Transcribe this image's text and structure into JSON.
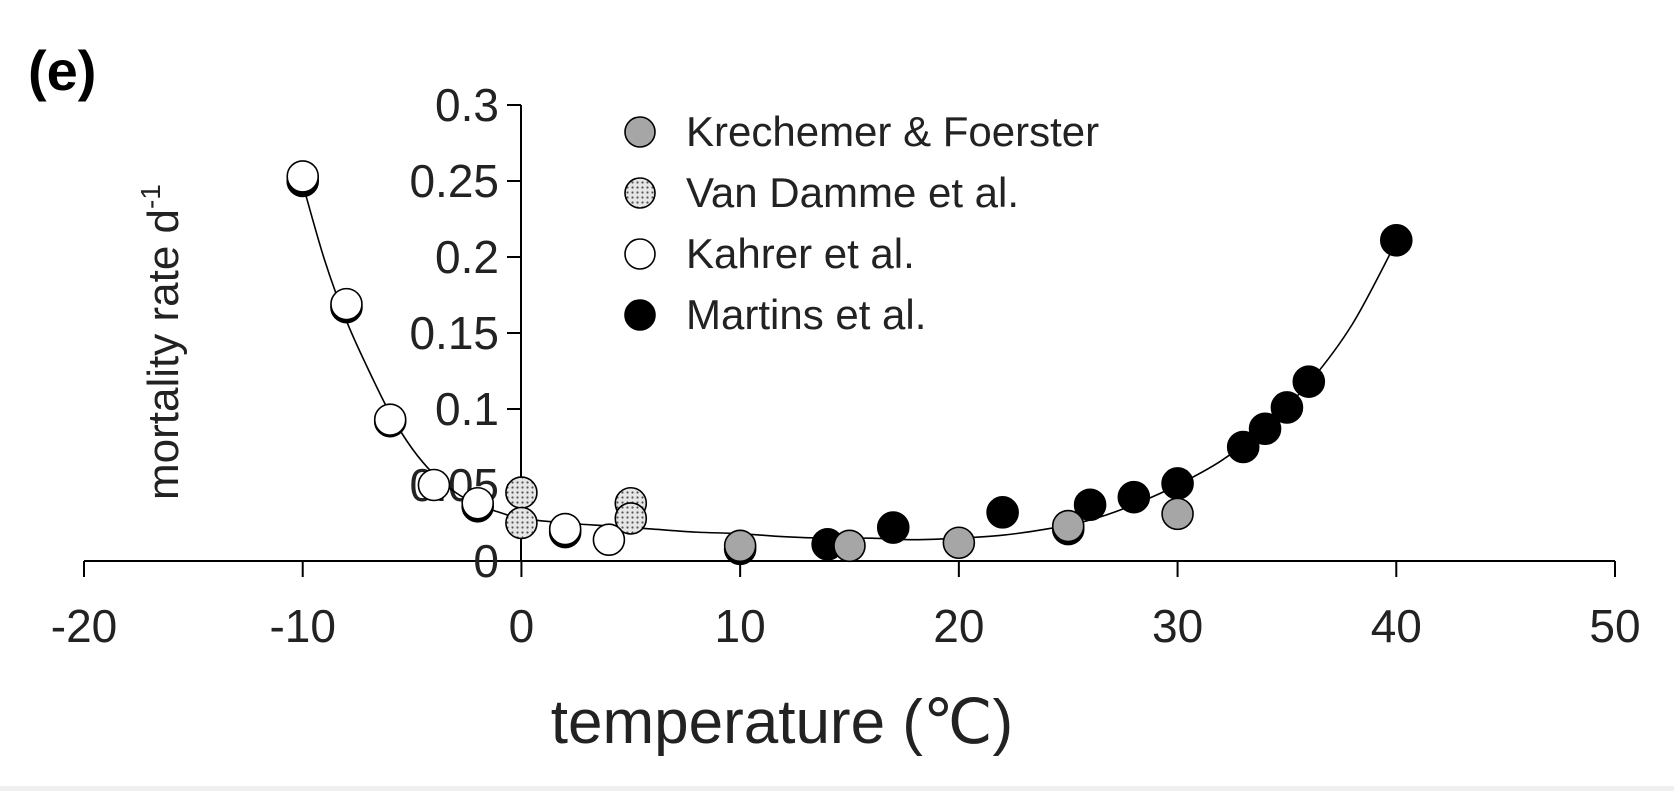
{
  "chart_data": {
    "type": "scatter",
    "panel_label": "(e)",
    "xlabel": "temperature (℃)",
    "ylabel": "mortality rate d",
    "ylabel_superscript": "-1",
    "xlim": [
      -20,
      50
    ],
    "ylim": [
      0,
      0.3
    ],
    "x_ticks": [
      -20,
      -10,
      0,
      10,
      20,
      30,
      40,
      50
    ],
    "x_tick_labels": [
      "-20",
      "-10",
      "0",
      "10",
      "20",
      "30",
      "40",
      "50"
    ],
    "y_ticks": [
      0,
      0.05,
      0.1,
      0.15,
      0.2,
      0.25,
      0.3
    ],
    "y_tick_labels": [
      "0",
      "0.05",
      "0.1",
      "0.15",
      "0.2",
      "0.25",
      "0.3"
    ],
    "grid": false,
    "legend_position": "top-center",
    "series": [
      {
        "name": "Krechemer & Foerster",
        "marker": "gray",
        "color": "#a6a6a6",
        "points": [
          [
            10,
            0.01
          ],
          [
            15,
            0.01
          ],
          [
            20,
            0.012
          ],
          [
            25,
            0.023
          ],
          [
            30,
            0.031
          ]
        ]
      },
      {
        "name": "Van Damme et al.",
        "marker": "dotted",
        "color": "#d9d9d9",
        "points": [
          [
            0,
            0.045
          ],
          [
            0,
            0.025
          ],
          [
            5,
            0.038
          ],
          [
            5,
            0.028
          ]
        ]
      },
      {
        "name": "Kahrer et al.",
        "marker": "open",
        "color": "#ffffff",
        "points": [
          [
            -10,
            0.253
          ],
          [
            -8,
            0.169
          ],
          [
            -6,
            0.093
          ],
          [
            -4,
            0.05
          ],
          [
            -2,
            0.038
          ],
          [
            2,
            0.021
          ],
          [
            4,
            0.014
          ]
        ]
      },
      {
        "name": "Martins et al.",
        "marker": "filled",
        "color": "#000000",
        "points": [
          [
            -10,
            0.25
          ],
          [
            -8,
            0.167
          ],
          [
            -6,
            0.092
          ],
          [
            -2,
            0.036
          ],
          [
            2,
            0.019
          ],
          [
            10,
            0.008
          ],
          [
            14,
            0.011
          ],
          [
            17,
            0.022
          ],
          [
            22,
            0.032
          ],
          [
            25,
            0.021
          ],
          [
            26,
            0.037
          ],
          [
            28,
            0.042
          ],
          [
            30,
            0.051
          ],
          [
            33,
            0.075
          ],
          [
            34,
            0.087
          ],
          [
            35,
            0.101
          ],
          [
            36,
            0.118
          ],
          [
            40,
            0.211
          ]
        ]
      }
    ],
    "fit_curve": [
      [
        -10,
        0.248
      ],
      [
        -9,
        0.198
      ],
      [
        -8,
        0.158
      ],
      [
        -7,
        0.126
      ],
      [
        -6,
        0.097
      ],
      [
        -5,
        0.074
      ],
      [
        -4,
        0.057
      ],
      [
        -3,
        0.045
      ],
      [
        -2,
        0.037
      ],
      [
        -1,
        0.032
      ],
      [
        0,
        0.028
      ],
      [
        2,
        0.025
      ],
      [
        4,
        0.023
      ],
      [
        6,
        0.021
      ],
      [
        8,
        0.019
      ],
      [
        10,
        0.018
      ],
      [
        12,
        0.016
      ],
      [
        14,
        0.015
      ],
      [
        16,
        0.015
      ],
      [
        18,
        0.014
      ],
      [
        20,
        0.015
      ],
      [
        22,
        0.017
      ],
      [
        24,
        0.021
      ],
      [
        26,
        0.027
      ],
      [
        28,
        0.037
      ],
      [
        30,
        0.05
      ],
      [
        32,
        0.066
      ],
      [
        34,
        0.088
      ],
      [
        36,
        0.117
      ],
      [
        38,
        0.156
      ],
      [
        40,
        0.21
      ]
    ]
  }
}
